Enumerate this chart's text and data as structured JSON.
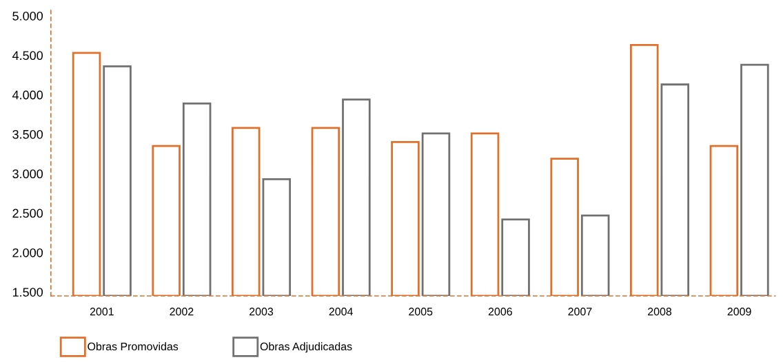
{
  "chart_data": {
    "type": "bar",
    "categories": [
      "2001",
      "2002",
      "2003",
      "2004",
      "2005",
      "2006",
      "2007",
      "2008",
      "2009"
    ],
    "series": [
      {
        "name": "Obras Promovidas",
        "color": "#e0702a",
        "values": [
          4530,
          3350,
          3580,
          3580,
          3400,
          3510,
          3190,
          4630,
          3350
        ]
      },
      {
        "name": "Obras Adjudicadas",
        "color": "#707070",
        "values": [
          4360,
          3890,
          2930,
          3940,
          3510,
          2420,
          2470,
          4130,
          4380
        ]
      }
    ],
    "ylim": [
      1450,
      5070
    ],
    "yticks": [
      {
        "value": 1500,
        "label": "1.500"
      },
      {
        "value": 2000,
        "label": "2.000"
      },
      {
        "value": 2500,
        "label": "2.500"
      },
      {
        "value": 3000,
        "label": "3.000"
      },
      {
        "value": 3500,
        "label": "3.500"
      },
      {
        "value": 4000,
        "label": "4.000"
      },
      {
        "value": 4500,
        "label": "4.500"
      },
      {
        "value": 5000,
        "label": "5.000"
      }
    ],
    "grid": false,
    "legend": "bottom left"
  }
}
